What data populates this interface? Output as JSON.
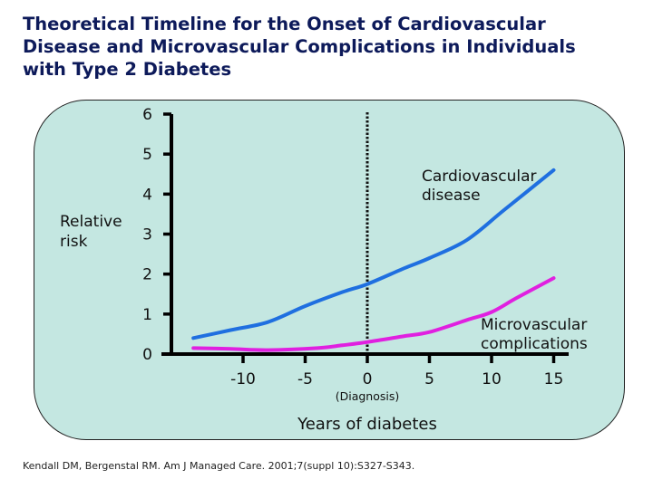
{
  "slide": {
    "title_lines": [
      "Theoretical Timeline for the Onset of Cardiovascular",
      "Disease and Microvascular Complications in Individuals",
      "with Type 2 Diabetes"
    ],
    "citation": "Kendall DM, Bergenstal RM. Am J Managed Care. 2001;7(suppl 10):S327-S343.",
    "colors": {
      "title": "#0d1a5a",
      "panel_background": "#c4e7e1",
      "cardiovascular": "#1f6fe0",
      "microvascular": "#e020e0"
    }
  },
  "chart_data": {
    "type": "line",
    "title": "Theoretical Timeline for the Onset of Cardiovascular Disease and Microvascular Complications in Individuals with Type 2 Diabetes",
    "xlabel": "Years of diabetes",
    "ylabel_lines": [
      "Relative",
      "risk"
    ],
    "xlim": [
      -14,
      15
    ],
    "ylim": [
      0,
      6
    ],
    "x_ticks": [
      -10,
      -5,
      0,
      5,
      10,
      15
    ],
    "x_tick_labels": [
      "-10",
      "-5",
      "0",
      "5",
      "10",
      "15"
    ],
    "y_ticks": [
      0,
      1,
      2,
      3,
      4,
      5,
      6
    ],
    "y_tick_labels": [
      "0",
      "1",
      "2",
      "3",
      "4",
      "5",
      "6"
    ],
    "grid": false,
    "reference_line": {
      "x": 0,
      "style": "dotted",
      "label": "(Diagnosis)"
    },
    "series": [
      {
        "name": "Cardiovascular disease",
        "label_lines": [
          "Cardiovascular",
          "disease"
        ],
        "color": "#1f6fe0",
        "x": [
          -14,
          -11,
          -8,
          -5,
          -2,
          0,
          3,
          5,
          8,
          11,
          15
        ],
        "y": [
          0.4,
          0.6,
          0.8,
          1.2,
          1.55,
          1.75,
          2.15,
          2.4,
          2.85,
          3.6,
          4.6
        ]
      },
      {
        "name": "Microvascular complications",
        "label_lines": [
          "Microvascular",
          "complications"
        ],
        "color": "#e020e0",
        "x": [
          -14,
          -11,
          -8,
          -4,
          -2,
          0,
          3,
          5,
          8,
          10,
          12,
          15
        ],
        "y": [
          0.15,
          0.13,
          0.1,
          0.15,
          0.22,
          0.3,
          0.45,
          0.55,
          0.85,
          1.05,
          1.4,
          1.9
        ]
      }
    ]
  }
}
